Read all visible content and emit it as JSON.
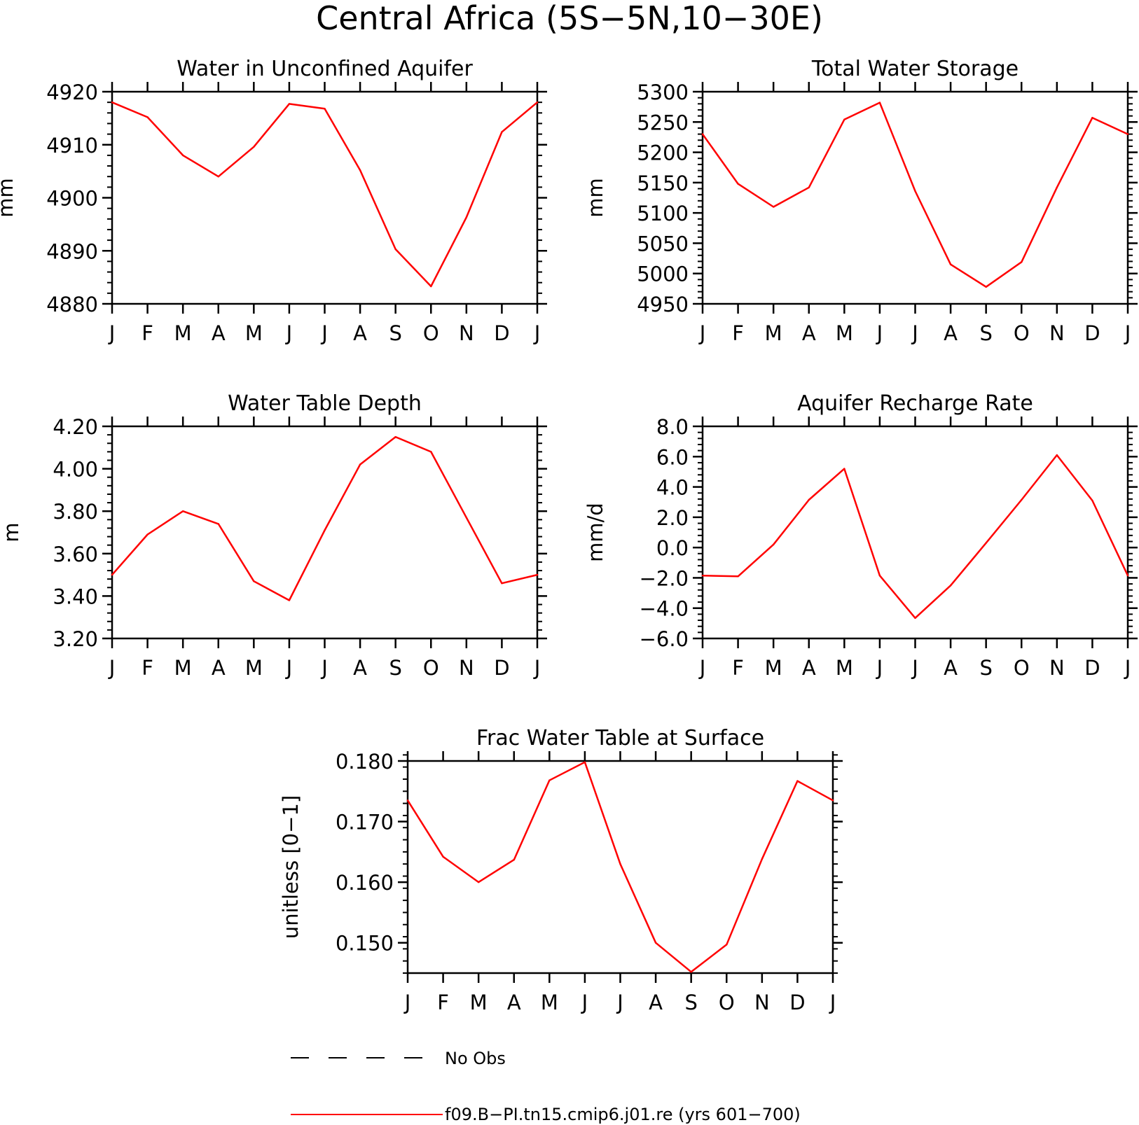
{
  "figure": {
    "title": "Central Africa (5S−5N,10−30E)"
  },
  "legend": {
    "entries": [
      {
        "label": "No Obs",
        "style": "dashed",
        "color": "#000000"
      },
      {
        "label": "f09.B−PI.tn15.cmip6.j01.re (yrs 601−700)",
        "style": "solid",
        "color": "#ff0000"
      }
    ]
  },
  "chart_data": [
    {
      "type": "line",
      "title": "Water in Unconfined Aquifer",
      "ylabel": "mm",
      "categories": [
        "J",
        "F",
        "M",
        "A",
        "M",
        "J",
        "J",
        "A",
        "S",
        "O",
        "N",
        "D",
        "J"
      ],
      "ylim": [
        4880,
        4920
      ],
      "yticks": [
        4880,
        4890,
        4900,
        4910,
        4920
      ],
      "ytick_labels": [
        "4880",
        "4890",
        "4900",
        "4910",
        "4920"
      ],
      "minor_step": 2,
      "series": [
        {
          "color": "#ff0000",
          "values": [
            4918,
            4915.2,
            4908,
            4904,
            4909.6,
            4917.7,
            4916.8,
            4905.2,
            4890.3,
            4883.3,
            4896.3,
            4912.4,
            4918
          ]
        }
      ]
    },
    {
      "type": "line",
      "title": "Total Water Storage",
      "ylabel": "mm",
      "categories": [
        "J",
        "F",
        "M",
        "A",
        "M",
        "J",
        "J",
        "A",
        "S",
        "O",
        "N",
        "D",
        "J"
      ],
      "ylim": [
        4950,
        5300
      ],
      "yticks": [
        4950,
        5000,
        5050,
        5100,
        5150,
        5200,
        5250,
        5300
      ],
      "ytick_labels": [
        "4950",
        "5000",
        "5050",
        "5100",
        "5150",
        "5200",
        "5250",
        "5300"
      ],
      "minor_step": 10,
      "series": [
        {
          "color": "#ff0000",
          "values": [
            5230,
            5148,
            5110,
            5142,
            5254,
            5282,
            5136,
            5015,
            4978,
            5019,
            5142,
            5257,
            5230
          ]
        }
      ]
    },
    {
      "type": "line",
      "title": "Water Table Depth",
      "ylabel": "m",
      "categories": [
        "J",
        "F",
        "M",
        "A",
        "M",
        "J",
        "J",
        "A",
        "S",
        "O",
        "N",
        "D",
        "J"
      ],
      "ylim": [
        3.2,
        4.2
      ],
      "yticks": [
        3.2,
        3.4,
        3.6,
        3.8,
        4.0,
        4.2
      ],
      "ytick_labels": [
        "3.20",
        "3.40",
        "3.60",
        "3.80",
        "4.00",
        "4.20"
      ],
      "minor_step": 0.04,
      "series": [
        {
          "color": "#ff0000",
          "values": [
            3.5,
            3.69,
            3.8,
            3.74,
            3.47,
            3.38,
            3.71,
            4.02,
            4.15,
            4.08,
            3.77,
            3.46,
            3.5
          ]
        }
      ]
    },
    {
      "type": "line",
      "title": "Aquifer Recharge Rate",
      "ylabel": "mm/d",
      "categories": [
        "J",
        "F",
        "M",
        "A",
        "M",
        "J",
        "J",
        "A",
        "S",
        "O",
        "N",
        "D",
        "J"
      ],
      "ylim": [
        -6,
        8
      ],
      "yticks": [
        -6,
        -4,
        -2,
        0,
        2,
        4,
        6,
        8
      ],
      "ytick_labels": [
        "−6.0",
        "−4.0",
        "−2.0",
        "0.0",
        "2.0",
        "4.0",
        "6.0",
        "8.0"
      ],
      "minor_step": 0.4,
      "series": [
        {
          "color": "#ff0000",
          "values": [
            -1.85,
            -1.9,
            0.2,
            3.15,
            5.2,
            -1.85,
            -4.65,
            -2.5,
            0.3,
            3.15,
            6.1,
            3.1,
            -1.85
          ]
        }
      ]
    },
    {
      "type": "line",
      "title": "Frac Water Table at Surface",
      "ylabel": "unitless [0−1]",
      "categories": [
        "J",
        "F",
        "M",
        "A",
        "M",
        "J",
        "J",
        "A",
        "S",
        "O",
        "N",
        "D",
        "J"
      ],
      "ylim": [
        0.145,
        0.18
      ],
      "yticks": [
        0.15,
        0.16,
        0.17,
        0.18
      ],
      "ytick_labels": [
        "0.150",
        "0.160",
        "0.170",
        "0.180"
      ],
      "minor_step": 0.002,
      "series": [
        {
          "color": "#ff0000",
          "values": [
            0.1735,
            0.1642,
            0.16,
            0.1637,
            0.1768,
            0.1798,
            0.163,
            0.15,
            0.1452,
            0.1497,
            0.1638,
            0.1767,
            0.1735
          ]
        }
      ]
    }
  ]
}
